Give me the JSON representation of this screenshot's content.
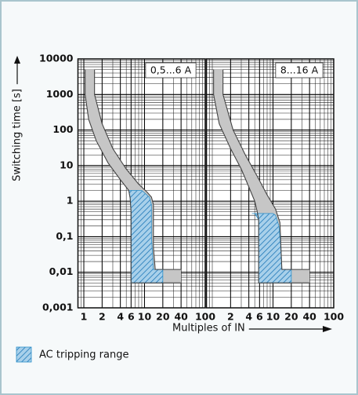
{
  "chart_data": [
    {
      "type": "band",
      "title": "0,5...6 A",
      "ylabel": "Switching time [s]",
      "log": true,
      "grid": true,
      "xlim": [
        0.8,
        100
      ],
      "xticks": [
        1,
        2,
        4,
        6,
        10,
        20,
        40,
        100
      ],
      "ylim": [
        0.001,
        10000
      ],
      "yticks": [
        10000,
        1000,
        100,
        10,
        1,
        {
          "value": 0.1,
          "label": "0,1"
        },
        {
          "value": 0.01,
          "label": "0,01"
        },
        {
          "value": 0.001,
          "label": "0,001"
        }
      ],
      "band_color": "#c6c6c6",
      "curves": [
        {
          "x": [
            1.05,
            1.05,
            1.2,
            1.6,
            2.5,
            4,
            5.5,
            5.8,
            6,
            6,
            40
          ],
          "y": [
            5000,
            1000,
            200,
            50,
            12,
            4,
            2,
            1.2,
            0.5,
            0.005,
            0.005
          ]
        },
        {
          "x": [
            1.5,
            1.5,
            2,
            3,
            5,
            8,
            11,
            13,
            14,
            14,
            15,
            40
          ],
          "y": [
            5000,
            1000,
            150,
            30,
            8,
            3,
            1.8,
            1.3,
            0.8,
            0.05,
            0.012,
            0.012
          ]
        }
      ],
      "ac": {
        "color": "#2a8fc9",
        "x": [
          5.5,
          9,
          12,
          13,
          13,
          14,
          20,
          20,
          6,
          6,
          5.8
        ],
        "y": [
          2,
          2,
          1.3,
          0.8,
          0.1,
          0.012,
          0.012,
          0.005,
          0.005,
          0.5,
          1.2
        ]
      }
    },
    {
      "type": "band",
      "title": "8...16 A",
      "xlabel": "Multiples of IN",
      "log": true,
      "grid": true,
      "xlim": [
        0.8,
        100
      ],
      "xticks": [
        2,
        4,
        6,
        10,
        20,
        40,
        100
      ],
      "ylim": [
        0.001,
        10000
      ],
      "yticks": [
        10000,
        1000,
        100,
        10,
        1,
        0.1,
        0.01,
        0.001
      ],
      "band_color": "#c6c6c6",
      "curves": [
        {
          "x": [
            1.05,
            1.05,
            1.3,
            2,
            3,
            4,
            5,
            5.5,
            5.8,
            5.8,
            40
          ],
          "y": [
            5000,
            1000,
            150,
            30,
            8,
            2.5,
            1,
            0.5,
            0.3,
            0.005,
            0.005
          ]
        },
        {
          "x": [
            1.5,
            1.5,
            2.2,
            3.5,
            5.5,
            8,
            11,
            13,
            13.5,
            14,
            40
          ],
          "y": [
            5000,
            1000,
            100,
            20,
            5,
            1.5,
            0.6,
            0.25,
            0.05,
            0.012,
            0.012
          ]
        }
      ],
      "ac": {
        "color": "#2a8fc9",
        "x": [
          4.5,
          10,
          11,
          12.5,
          13.5,
          14,
          20,
          20,
          5.8,
          5.8,
          5
        ],
        "y": [
          0.45,
          0.45,
          0.4,
          0.2,
          0.05,
          0.012,
          0.012,
          0.005,
          0.005,
          0.3,
          0.45
        ]
      }
    }
  ],
  "legend": {
    "label": "AC tripping range"
  }
}
